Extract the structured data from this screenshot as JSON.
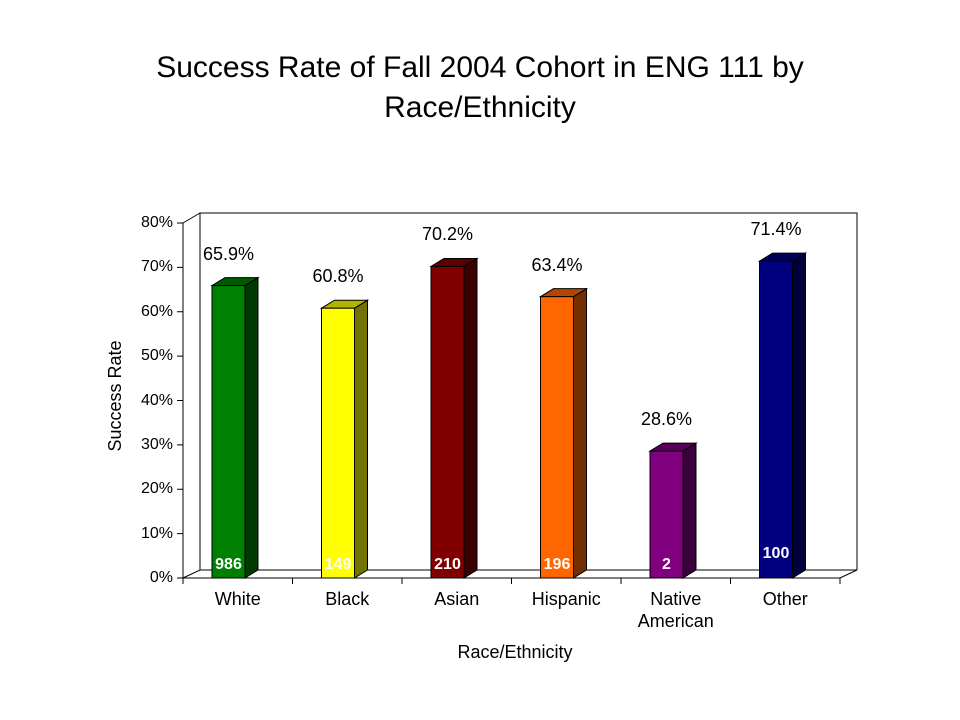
{
  "chart_data": {
    "type": "bar3d",
    "title": "Success Rate of Fall 2004 Cohort in ENG 111 by Race/Ethnicity",
    "x_label": "Race/Ethnicity",
    "y_label": "Success Rate",
    "categories": [
      "White",
      "Black",
      "Asian",
      "Hispanic",
      "Native American",
      "Other"
    ],
    "values": [
      65.9,
      60.8,
      70.2,
      63.4,
      28.6,
      71.4
    ],
    "value_labels": [
      "65.9%",
      "60.8%",
      "70.2%",
      "63.4%",
      "28.6%",
      "71.4%"
    ],
    "counts": [
      986,
      149,
      210,
      196,
      2,
      100
    ],
    "colors": [
      "#008000",
      "#ffff00",
      "#800000",
      "#ff6600",
      "#800080",
      "#000080"
    ],
    "ylim": [
      0,
      80
    ],
    "yticks": [
      {
        "value": 0,
        "label": "0%"
      },
      {
        "value": 10,
        "label": "10%"
      },
      {
        "value": 20,
        "label": "20%"
      },
      {
        "value": 30,
        "label": "30%"
      },
      {
        "value": 40,
        "label": "40%"
      },
      {
        "value": 50,
        "label": "50%"
      },
      {
        "value": 60,
        "label": "60%"
      },
      {
        "value": 70,
        "label": "70%"
      },
      {
        "value": 80,
        "label": "80%"
      }
    ],
    "grid": false
  }
}
